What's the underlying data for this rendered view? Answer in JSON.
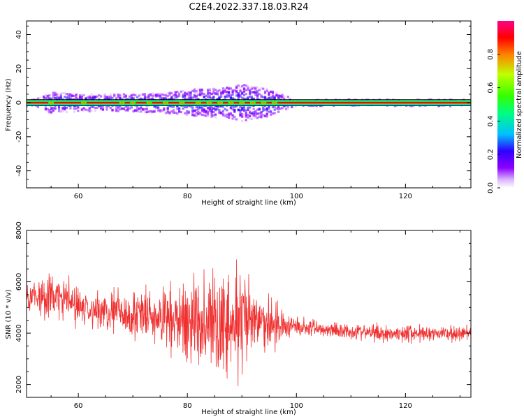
{
  "figure_title": "C2E4.2022.337.18.03.R24",
  "chart_data": [
    {
      "type": "heatmap",
      "xlabel": "Height of straight line (km)",
      "ylabel": "Frequency (Hz)",
      "xlim": [
        50.5,
        132
      ],
      "ylim": [
        -50,
        48
      ],
      "x_ticks": [
        60,
        80,
        100,
        120
      ],
      "y_ticks": [
        -40,
        -20,
        0,
        20,
        40
      ],
      "colorbar": {
        "label": "Normalized spectral amplitude",
        "range": [
          0,
          1
        ],
        "ticks": [
          "0.0",
          "0.2",
          "0.4",
          "0.6",
          "0.8"
        ],
        "tick_values": [
          0,
          0.2,
          0.4,
          0.6,
          0.8
        ],
        "colormap": [
          "#ffffff",
          "#d9b3ff",
          "#8c00ff",
          "#2f00ff",
          "#00c0ff",
          "#00ff80",
          "#33ff00",
          "#c0ff00",
          "#ff8000",
          "#ff0000",
          "#ff0088"
        ]
      },
      "ridge": {
        "frequency": 0,
        "amplitude": 1.0
      },
      "spread_profile": [
        {
          "x": 52,
          "spread_hz": 2
        },
        {
          "x": 55,
          "spread_hz": 6
        },
        {
          "x": 61,
          "spread_hz": 5
        },
        {
          "x": 68,
          "spread_hz": 5
        },
        {
          "x": 76,
          "spread_hz": 6
        },
        {
          "x": 82,
          "spread_hz": 8
        },
        {
          "x": 88,
          "spread_hz": 9
        },
        {
          "x": 90,
          "spread_hz": 11
        },
        {
          "x": 95,
          "spread_hz": 8
        },
        {
          "x": 97,
          "spread_hz": 5
        },
        {
          "x": 100,
          "spread_hz": 2
        },
        {
          "x": 110,
          "spread_hz": 2
        },
        {
          "x": 125,
          "spread_hz": 2
        },
        {
          "x": 132,
          "spread_hz": 2
        }
      ],
      "hot_spots": [
        55,
        61,
        68,
        70,
        73,
        76,
        79,
        82,
        84,
        86,
        88,
        90,
        92,
        94,
        96
      ]
    },
    {
      "type": "line",
      "xlabel": "Height of straight line (km)",
      "ylabel": "SNR (10 * v/v)",
      "xlim": [
        50.5,
        132
      ],
      "ylim": [
        1500,
        8000
      ],
      "x_ticks": [
        60,
        80,
        100,
        120
      ],
      "y_ticks": [
        2000,
        4000,
        6000,
        8000
      ],
      "line_color": "#f03030",
      "envelope": [
        {
          "x": 50.5,
          "mean": 5500,
          "amp": 700
        },
        {
          "x": 56,
          "mean": 5400,
          "amp": 900
        },
        {
          "x": 62,
          "mean": 4900,
          "amp": 800
        },
        {
          "x": 68,
          "mean": 4800,
          "amp": 900
        },
        {
          "x": 74,
          "mean": 4600,
          "amp": 1100
        },
        {
          "x": 78,
          "mean": 4500,
          "amp": 1300
        },
        {
          "x": 82,
          "mean": 4500,
          "amp": 2000
        },
        {
          "x": 85,
          "mean": 4400,
          "amp": 2200
        },
        {
          "x": 88,
          "mean": 4300,
          "amp": 2000
        },
        {
          "x": 89.5,
          "mean": 4300,
          "amp": 2600
        },
        {
          "x": 92,
          "mean": 4400,
          "amp": 1500
        },
        {
          "x": 96,
          "mean": 4400,
          "amp": 1000
        },
        {
          "x": 98,
          "mean": 4300,
          "amp": 500
        },
        {
          "x": 105,
          "mean": 4150,
          "amp": 350
        },
        {
          "x": 115,
          "mean": 4000,
          "amp": 350
        },
        {
          "x": 125,
          "mean": 4000,
          "amp": 350
        },
        {
          "x": 132,
          "mean": 3950,
          "amp": 300
        }
      ]
    }
  ]
}
